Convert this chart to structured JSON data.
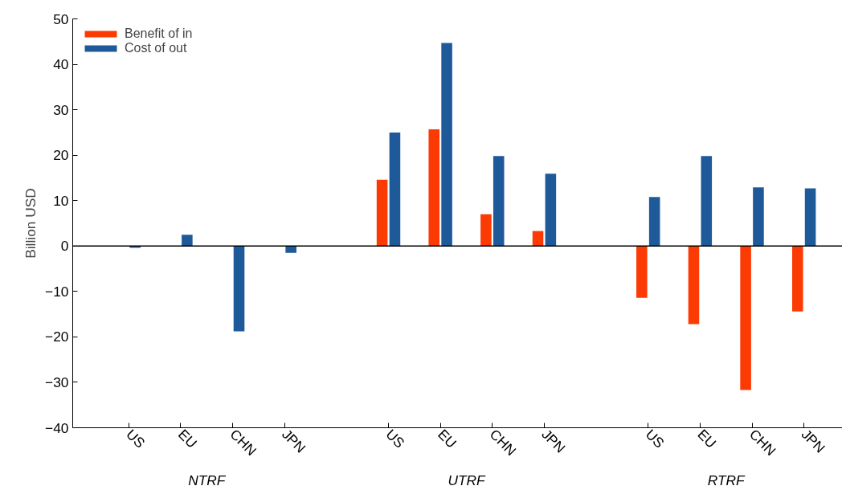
{
  "chart_data": {
    "type": "bar",
    "ylabel": "Billion USD",
    "categories": [
      "US",
      "EU",
      "CHN",
      "JPN",
      null,
      "US",
      "EU",
      "CHN",
      "JPN",
      null,
      "US",
      "EU",
      "CHN",
      "JPN"
    ],
    "series": [
      {
        "name": "Benefit of in",
        "color": "#fc3a04",
        "values": [
          0,
          0,
          0,
          0,
          null,
          14.6,
          25.7,
          7.0,
          3.3,
          null,
          -11.4,
          -17.2,
          -31.7,
          -14.4
        ]
      },
      {
        "name": "Cost of out",
        "color": "#1e5a9a",
        "values": [
          -0.4,
          2.5,
          -18.8,
          -1.5,
          null,
          25.0,
          44.7,
          19.8,
          15.9,
          null,
          10.8,
          19.8,
          12.9,
          12.7
        ]
      }
    ],
    "ylim": [
      -40,
      50
    ],
    "yticks": [
      -40,
      -30,
      -20,
      -10,
      0,
      10,
      20,
      30,
      40,
      50
    ],
    "ref_lines": [
      {
        "axis": "y",
        "value": 0,
        "label": null,
        "color": "#000000"
      }
    ],
    "annotations": [
      "NTRF",
      "UTRF",
      "RTRF"
    ],
    "grid": false,
    "legend": "top left"
  }
}
